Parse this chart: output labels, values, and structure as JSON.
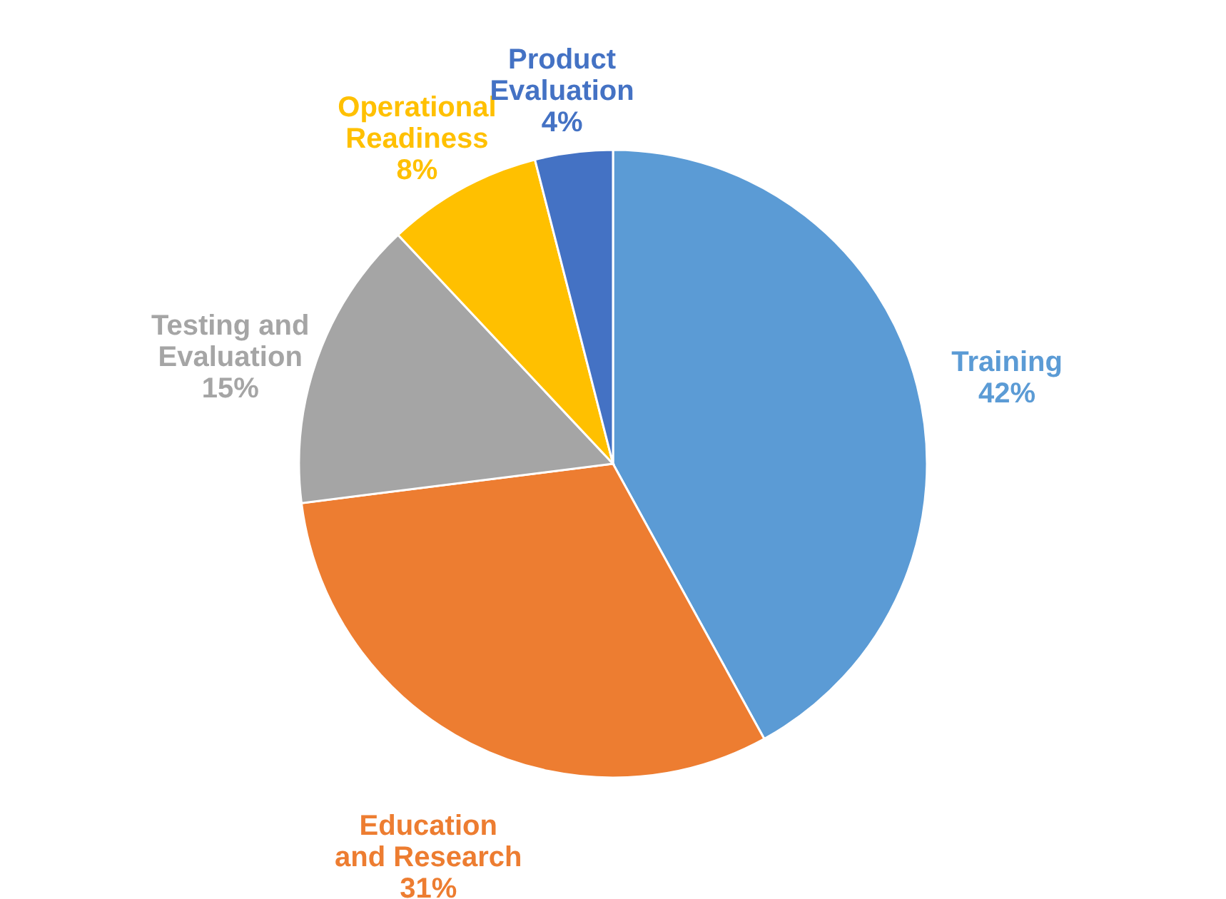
{
  "chart_data": {
    "type": "pie",
    "categories": [
      "Training",
      "Education and Research",
      "Testing and Evaluation",
      "Operational Readiness",
      "Product Evaluation"
    ],
    "values": [
      42,
      31,
      15,
      8,
      4
    ],
    "value_labels": [
      "42%",
      "31%",
      "15%",
      "8%",
      "4%"
    ],
    "colors": [
      "#5b9bd5",
      "#ed7d31",
      "#a5a5a5",
      "#ffc000",
      "#4472c4"
    ]
  }
}
